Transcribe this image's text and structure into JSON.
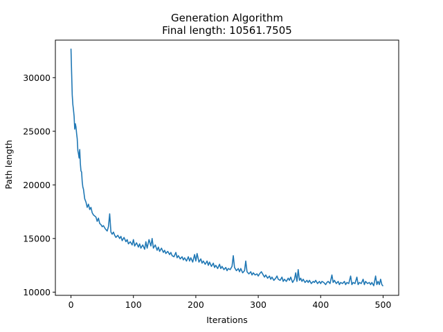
{
  "chart_data": {
    "type": "line",
    "title": "Generation Algorithm",
    "subtitle": "Final length: 10561.7505",
    "xlabel": "Iterations",
    "ylabel": "Path length",
    "xlim": [
      -25,
      525
    ],
    "ylim": [
      9700,
      33500
    ],
    "xticks": [
      0,
      100,
      200,
      300,
      400,
      500
    ],
    "xtick_labels": [
      "0",
      "100",
      "200",
      "300",
      "400",
      "500"
    ],
    "yticks": [
      10000,
      15000,
      20000,
      25000,
      30000
    ],
    "ytick_labels": [
      "10000",
      "15000",
      "20000",
      "25000",
      "30000"
    ],
    "grid": false,
    "series": [
      {
        "color": "#1f77b4",
        "points": [
          [
            0,
            32700
          ],
          [
            1,
            30500
          ],
          [
            2,
            28400
          ],
          [
            3,
            27500
          ],
          [
            4,
            27000
          ],
          [
            5,
            26400
          ],
          [
            6,
            25200
          ],
          [
            7,
            25700
          ],
          [
            8,
            25400
          ],
          [
            9,
            24800
          ],
          [
            10,
            24300
          ],
          [
            11,
            23200
          ],
          [
            12,
            22900
          ],
          [
            13,
            22500
          ],
          [
            14,
            23300
          ],
          [
            15,
            22000
          ],
          [
            16,
            21300
          ],
          [
            17,
            21200
          ],
          [
            18,
            20300
          ],
          [
            19,
            19800
          ],
          [
            20,
            19600
          ],
          [
            22,
            18700
          ],
          [
            24,
            18400
          ],
          [
            26,
            17900
          ],
          [
            28,
            18200
          ],
          [
            30,
            17700
          ],
          [
            32,
            17900
          ],
          [
            34,
            17400
          ],
          [
            36,
            17200
          ],
          [
            38,
            17100
          ],
          [
            40,
            17000
          ],
          [
            42,
            16600
          ],
          [
            44,
            16900
          ],
          [
            46,
            16400
          ],
          [
            48,
            16300
          ],
          [
            50,
            16100
          ],
          [
            52,
            16200
          ],
          [
            55,
            15900
          ],
          [
            58,
            15700
          ],
          [
            60,
            16100
          ],
          [
            62,
            17300
          ],
          [
            64,
            15600
          ],
          [
            66,
            15400
          ],
          [
            68,
            15600
          ],
          [
            70,
            15300
          ],
          [
            72,
            15100
          ],
          [
            75,
            15300
          ],
          [
            78,
            15000
          ],
          [
            80,
            15200
          ],
          [
            82,
            14800
          ],
          [
            85,
            15100
          ],
          [
            88,
            14700
          ],
          [
            90,
            14900
          ],
          [
            92,
            14500
          ],
          [
            95,
            14700
          ],
          [
            98,
            14400
          ],
          [
            100,
            14900
          ],
          [
            102,
            14300
          ],
          [
            105,
            14600
          ],
          [
            108,
            14200
          ],
          [
            110,
            14500
          ],
          [
            112,
            14100
          ],
          [
            115,
            14400
          ],
          [
            118,
            14000
          ],
          [
            120,
            14700
          ],
          [
            122,
            14100
          ],
          [
            125,
            14900
          ],
          [
            128,
            14300
          ],
          [
            130,
            15000
          ],
          [
            132,
            14100
          ],
          [
            135,
            14400
          ],
          [
            138,
            13900
          ],
          [
            140,
            14200
          ],
          [
            142,
            13800
          ],
          [
            145,
            14100
          ],
          [
            148,
            13700
          ],
          [
            150,
            13900
          ],
          [
            152,
            13600
          ],
          [
            155,
            13800
          ],
          [
            158,
            13500
          ],
          [
            160,
            13700
          ],
          [
            162,
            13400
          ],
          [
            165,
            13300
          ],
          [
            168,
            13700
          ],
          [
            170,
            13200
          ],
          [
            172,
            13400
          ],
          [
            175,
            13100
          ],
          [
            178,
            13300
          ],
          [
            180,
            13000
          ],
          [
            182,
            13200
          ],
          [
            185,
            12900
          ],
          [
            188,
            13300
          ],
          [
            190,
            12900
          ],
          [
            192,
            13200
          ],
          [
            195,
            12800
          ],
          [
            198,
            13500
          ],
          [
            200,
            12900
          ],
          [
            202,
            13600
          ],
          [
            205,
            12800
          ],
          [
            208,
            13100
          ],
          [
            210,
            12700
          ],
          [
            212,
            12900
          ],
          [
            215,
            12600
          ],
          [
            218,
            12900
          ],
          [
            220,
            12500
          ],
          [
            222,
            12800
          ],
          [
            225,
            12400
          ],
          [
            228,
            12700
          ],
          [
            230,
            12300
          ],
          [
            232,
            12500
          ],
          [
            235,
            12200
          ],
          [
            238,
            12600
          ],
          [
            240,
            12200
          ],
          [
            242,
            12400
          ],
          [
            245,
            12100
          ],
          [
            248,
            12300
          ],
          [
            250,
            12000
          ],
          [
            252,
            12200
          ],
          [
            255,
            12100
          ],
          [
            258,
            12400
          ],
          [
            260,
            13400
          ],
          [
            262,
            12300
          ],
          [
            265,
            12000
          ],
          [
            268,
            12200
          ],
          [
            270,
            11900
          ],
          [
            272,
            12200
          ],
          [
            275,
            11800
          ],
          [
            278,
            12000
          ],
          [
            280,
            12900
          ],
          [
            282,
            11900
          ],
          [
            285,
            11700
          ],
          [
            288,
            11900
          ],
          [
            290,
            11600
          ],
          [
            292,
            11800
          ],
          [
            295,
            11600
          ],
          [
            298,
            11700
          ],
          [
            300,
            11500
          ],
          [
            302,
            11700
          ],
          [
            305,
            11900
          ],
          [
            308,
            11600
          ],
          [
            310,
            11400
          ],
          [
            312,
            11600
          ],
          [
            315,
            11300
          ],
          [
            318,
            11500
          ],
          [
            320,
            11200
          ],
          [
            322,
            11400
          ],
          [
            325,
            11100
          ],
          [
            328,
            11300
          ],
          [
            330,
            11500
          ],
          [
            332,
            11200
          ],
          [
            335,
            11100
          ],
          [
            338,
            11400
          ],
          [
            340,
            11000
          ],
          [
            342,
            11200
          ],
          [
            345,
            11000
          ],
          [
            348,
            11300
          ],
          [
            350,
            11100
          ],
          [
            352,
            11400
          ],
          [
            355,
            10900
          ],
          [
            358,
            11200
          ],
          [
            360,
            11800
          ],
          [
            362,
            11000
          ],
          [
            364,
            12100
          ],
          [
            366,
            11100
          ],
          [
            368,
            11300
          ],
          [
            370,
            11000
          ],
          [
            372,
            11200
          ],
          [
            375,
            10900
          ],
          [
            378,
            11100
          ],
          [
            380,
            10900
          ],
          [
            382,
            11100
          ],
          [
            385,
            10800
          ],
          [
            388,
            11000
          ],
          [
            390,
            10900
          ],
          [
            392,
            11100
          ],
          [
            395,
            10800
          ],
          [
            398,
            11000
          ],
          [
            400,
            10800
          ],
          [
            402,
            11000
          ],
          [
            405,
            10900
          ],
          [
            408,
            10700
          ],
          [
            410,
            10900
          ],
          [
            412,
            11000
          ],
          [
            415,
            10800
          ],
          [
            418,
            11600
          ],
          [
            420,
            10900
          ],
          [
            422,
            11100
          ],
          [
            425,
            10800
          ],
          [
            428,
            11000
          ],
          [
            430,
            10700
          ],
          [
            432,
            10900
          ],
          [
            435,
            10800
          ],
          [
            438,
            11000
          ],
          [
            440,
            10700
          ],
          [
            442,
            10900
          ],
          [
            445,
            10800
          ],
          [
            448,
            11500
          ],
          [
            450,
            10700
          ],
          [
            452,
            10900
          ],
          [
            455,
            10800
          ],
          [
            458,
            11400
          ],
          [
            460,
            10700
          ],
          [
            462,
            10900
          ],
          [
            465,
            10800
          ],
          [
            468,
            11200
          ],
          [
            470,
            10700
          ],
          [
            472,
            11000
          ],
          [
            475,
            10800
          ],
          [
            478,
            10900
          ],
          [
            480,
            10700
          ],
          [
            482,
            10900
          ],
          [
            485,
            10600
          ],
          [
            488,
            11500
          ],
          [
            490,
            10700
          ],
          [
            492,
            11000
          ],
          [
            494,
            10700
          ],
          [
            496,
            11200
          ],
          [
            498,
            10700
          ],
          [
            500,
            10562
          ]
        ]
      }
    ]
  }
}
